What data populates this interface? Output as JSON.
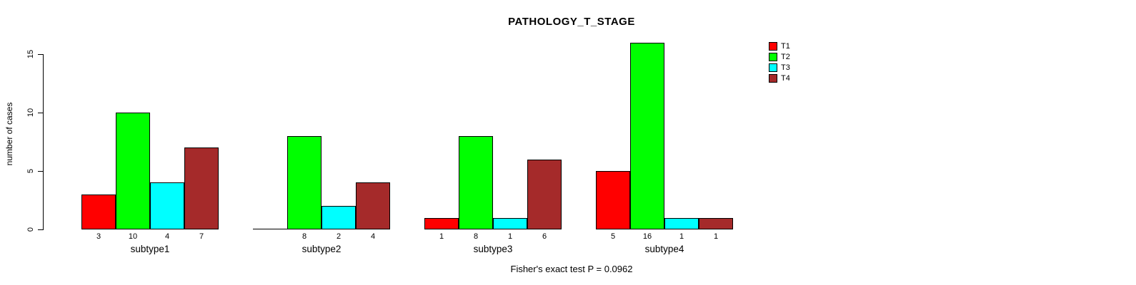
{
  "title": "PATHOLOGY_T_STAGE",
  "ylabel": "number of cases",
  "footer": "Fisher's exact test P = 0.0962",
  "chart_data": {
    "type": "bar",
    "title": "PATHOLOGY_T_STAGE",
    "xlabel": "",
    "ylabel": "number of cases",
    "categories": [
      "subtype1",
      "subtype2",
      "subtype3",
      "subtype4"
    ],
    "series": [
      {
        "name": "T1",
        "color": "#FF0000",
        "values": [
          3,
          0,
          1,
          5
        ]
      },
      {
        "name": "T2",
        "color": "#00FF00",
        "values": [
          10,
          8,
          8,
          16
        ]
      },
      {
        "name": "T3",
        "color": "#00FFFF",
        "values": [
          4,
          2,
          1,
          1
        ]
      },
      {
        "name": "T4",
        "color": "#A52A2A",
        "values": [
          7,
          4,
          6,
          1
        ]
      }
    ],
    "bar_value_labels": {
      "subtype1": [
        "3",
        "10",
        "4",
        "7"
      ],
      "subtype2": [
        "",
        "8",
        "2",
        "4"
      ],
      "subtype3": [
        "1",
        "8",
        "1",
        "6"
      ],
      "subtype4": [
        "5",
        "16",
        "1",
        "1"
      ]
    },
    "yticks": [
      0,
      5,
      10,
      15
    ],
    "ytick_labels": [
      "0",
      "5",
      "10",
      "15"
    ],
    "ylim": [
      0,
      16
    ],
    "grid": false,
    "legend_position": "top-right",
    "annotation": "Fisher's exact test P = 0.0962"
  }
}
